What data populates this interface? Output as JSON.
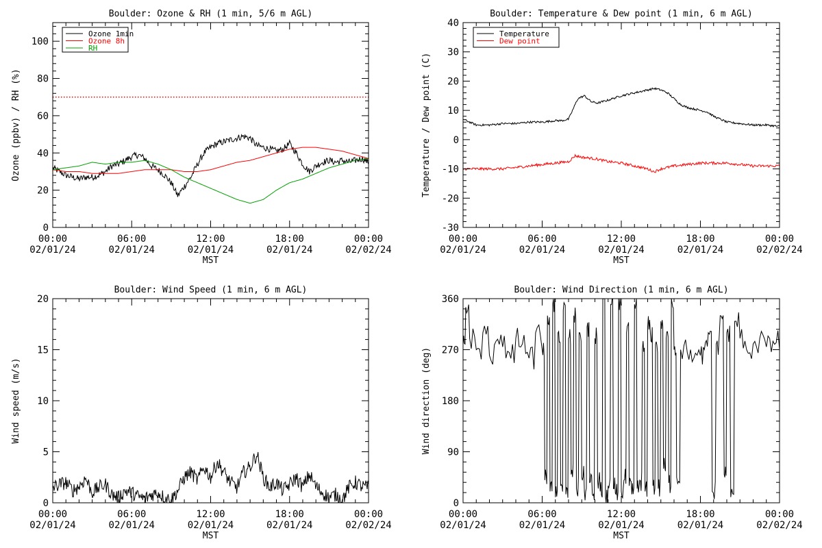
{
  "chart_data": [
    {
      "type": "line",
      "title": "Boulder: Ozone & RH (1 min, 5/6 m AGL)",
      "xlabel": "MST",
      "ylabel": "Ozone (ppbv) / RH (%)",
      "xlim": [
        0,
        24
      ],
      "ylim": [
        0,
        110
      ],
      "yticks": [
        0,
        20,
        40,
        60,
        80,
        100
      ],
      "xticks": [
        {
          "time": "00:00",
          "date": "02/01/24"
        },
        {
          "time": "06:00",
          "date": "02/01/24"
        },
        {
          "time": "12:00",
          "date": "02/01/24"
        },
        {
          "time": "18:00",
          "date": "02/01/24"
        },
        {
          "time": "00:00",
          "date": "02/02/24"
        }
      ],
      "legend_position": "top-left",
      "reference_line": {
        "y": 70,
        "color": "#ff0000",
        "style": "dotted"
      },
      "series": [
        {
          "name": "Ozone 1min",
          "color": "#000000",
          "x": [
            0,
            0.5,
            1,
            1.5,
            2,
            2.5,
            3,
            3.5,
            4,
            4.5,
            5,
            5.5,
            6,
            6.5,
            7,
            7.5,
            8,
            8.5,
            9,
            9.5,
            10,
            10.5,
            11,
            11.5,
            12,
            12.5,
            13,
            13.5,
            14,
            14.5,
            15,
            15.5,
            16,
            16.5,
            17,
            17.5,
            18,
            18.5,
            19,
            19.5,
            20,
            20.5,
            21,
            21.5,
            22,
            22.5,
            23,
            23.5,
            24
          ],
          "values": [
            32,
            30,
            28,
            27,
            26,
            27,
            27,
            28,
            30,
            33,
            34,
            36,
            38,
            39,
            37,
            33,
            31,
            28,
            24,
            17,
            22,
            27,
            34,
            40,
            43,
            45,
            46,
            47,
            48,
            49,
            48,
            44,
            43,
            42,
            41,
            42,
            45,
            40,
            34,
            30,
            33,
            35,
            36,
            35,
            36,
            35,
            36,
            37,
            35
          ]
        },
        {
          "name": "Ozone 8h",
          "color": "#ff0000",
          "x": [
            0,
            1,
            2,
            3,
            4,
            5,
            6,
            7,
            8,
            9,
            10,
            11,
            12,
            13,
            14,
            15,
            16,
            17,
            18,
            19,
            20,
            21,
            22,
            23,
            24
          ],
          "values": [
            31,
            30,
            30,
            29,
            29,
            29,
            30,
            31,
            31,
            31,
            30,
            30,
            31,
            33,
            35,
            36,
            38,
            40,
            42,
            43,
            43,
            42,
            41,
            39,
            37
          ]
        },
        {
          "name": "RH",
          "color": "#00a000",
          "x": [
            0,
            1,
            2,
            3,
            4,
            5,
            6,
            7,
            8,
            9,
            10,
            11,
            12,
            13,
            14,
            15,
            16,
            17,
            18,
            19,
            20,
            21,
            22,
            23,
            24
          ],
          "values": [
            31,
            32,
            33,
            35,
            34,
            35,
            35,
            36,
            34,
            31,
            27,
            24,
            21,
            18,
            15,
            13,
            15,
            20,
            24,
            26,
            29,
            32,
            34,
            36,
            37
          ]
        }
      ]
    },
    {
      "type": "line",
      "title": "Boulder: Temperature & Dew point (1 min, 6 m AGL)",
      "xlabel": "MST",
      "ylabel": "Temperature / Dew point (C)",
      "xlim": [
        0,
        24
      ],
      "ylim": [
        -30,
        40
      ],
      "yticks": [
        -30,
        -20,
        -10,
        0,
        10,
        20,
        30,
        40
      ],
      "xticks": [
        {
          "time": "00:00",
          "date": "02/01/24"
        },
        {
          "time": "06:00",
          "date": "02/01/24"
        },
        {
          "time": "12:00",
          "date": "02/01/24"
        },
        {
          "time": "18:00",
          "date": "02/01/24"
        },
        {
          "time": "00:00",
          "date": "02/02/24"
        }
      ],
      "legend_position": "top-left",
      "series": [
        {
          "name": "Temperature",
          "color": "#000000",
          "x": [
            0,
            0.5,
            1,
            1.5,
            2,
            3,
            4,
            5,
            6,
            7,
            7.5,
            8,
            8.3,
            8.7,
            9.2,
            9.7,
            10.2,
            11,
            12,
            13,
            14,
            14.5,
            15,
            15.5,
            16,
            16.5,
            17,
            18,
            18.5,
            19,
            20,
            21,
            22,
            23,
            24
          ],
          "values": [
            7,
            6,
            5,
            5,
            5,
            5.5,
            5.5,
            6,
            6,
            6.5,
            6.5,
            7,
            10,
            14,
            15,
            13,
            12.5,
            13.5,
            15,
            16,
            17,
            17.5,
            17,
            16,
            14,
            12,
            11,
            10,
            9.5,
            8,
            6,
            5.5,
            5,
            5,
            4.5
          ]
        },
        {
          "name": "Dew point",
          "color": "#ff0000",
          "x": [
            0,
            1,
            2,
            3,
            4,
            5,
            6,
            7,
            8,
            8.5,
            9,
            10,
            11,
            12,
            13,
            14,
            14.5,
            15,
            16,
            17,
            18,
            19,
            20,
            21,
            22,
            23,
            24
          ],
          "values": [
            -10,
            -10,
            -10,
            -10,
            -9.5,
            -9,
            -8.5,
            -8,
            -7.5,
            -5.5,
            -6,
            -6.5,
            -7.5,
            -8,
            -9,
            -10,
            -11,
            -10,
            -9,
            -8.5,
            -8,
            -8,
            -8,
            -8.5,
            -9,
            -9,
            -9
          ]
        }
      ]
    },
    {
      "type": "line",
      "title": "Boulder: Wind Speed (1 min, 6 m AGL)",
      "xlabel": "MST",
      "ylabel": "Wind speed (m/s)",
      "xlim": [
        0,
        24
      ],
      "ylim": [
        0,
        20
      ],
      "yticks": [
        0,
        5,
        10,
        15,
        20
      ],
      "xticks": [
        {
          "time": "00:00",
          "date": "02/01/24"
        },
        {
          "time": "06:00",
          "date": "02/01/24"
        },
        {
          "time": "12:00",
          "date": "02/01/24"
        },
        {
          "time": "18:00",
          "date": "02/01/24"
        },
        {
          "time": "00:00",
          "date": "02/02/24"
        }
      ],
      "series": [
        {
          "color": "#000000",
          "x": [
            0,
            0.5,
            1,
            1.5,
            2,
            2.5,
            3,
            3.5,
            4,
            4.5,
            5,
            5.5,
            6,
            6.5,
            7,
            7.5,
            8,
            8.5,
            9,
            9.5,
            10,
            10.5,
            11,
            11.5,
            12,
            12.5,
            13,
            13.5,
            14,
            14.5,
            15,
            15.5,
            16,
            16.5,
            17,
            17.5,
            18,
            18.5,
            19,
            19.5,
            20,
            20.5,
            21,
            21.5,
            22,
            22.5,
            23,
            23.5,
            24
          ],
          "values": [
            1.5,
            1.8,
            2.0,
            1.2,
            1.6,
            2.4,
            1.0,
            1.5,
            1.8,
            0.8,
            0.5,
            1.2,
            1.0,
            0.6,
            0.4,
            0.8,
            1.0,
            0.5,
            0.3,
            1.2,
            2.5,
            3.0,
            2.2,
            3.5,
            2.5,
            4.0,
            3.0,
            2.0,
            1.5,
            3.0,
            3.5,
            4.8,
            2.5,
            1.5,
            2.0,
            1.2,
            1.8,
            2.5,
            1.5,
            2.8,
            1.6,
            1.0,
            0.5,
            0.8,
            0.3,
            1.5,
            2.0,
            1.6,
            1.5
          ]
        }
      ]
    },
    {
      "type": "line",
      "title": "Boulder: Wind Direction (1 min, 6 m AGL)",
      "xlabel": "MST",
      "ylabel": "Wind direction (deg)",
      "xlim": [
        0,
        24
      ],
      "ylim": [
        0,
        360
      ],
      "yticks": [
        0,
        90,
        180,
        270,
        360
      ],
      "xticks": [
        {
          "time": "00:00",
          "date": "02/01/24"
        },
        {
          "time": "06:00",
          "date": "02/01/24"
        },
        {
          "time": "12:00",
          "date": "02/01/24"
        },
        {
          "time": "18:00",
          "date": "02/01/24"
        },
        {
          "time": "00:00",
          "date": "02/02/24"
        }
      ],
      "series": [
        {
          "color": "#000000",
          "x": [
            0,
            0.2,
            0.5,
            1,
            1.5,
            2,
            2.5,
            3,
            3.5,
            4,
            4.5,
            5,
            5.5,
            6,
            6.2,
            6.4,
            6.6,
            6.8,
            7,
            7.2,
            7.4,
            7.6,
            7.8,
            8,
            8.2,
            8.4,
            8.6,
            8.8,
            9,
            9.2,
            9.4,
            9.6,
            9.8,
            10,
            10.2,
            10.4,
            10.6,
            10.8,
            11,
            11.2,
            11.4,
            11.6,
            11.8,
            12,
            12.2,
            12.4,
            12.6,
            12.8,
            13,
            13.2,
            13.4,
            13.6,
            13.8,
            14,
            14.2,
            14.4,
            14.6,
            14.8,
            15,
            15.2,
            15.4,
            15.6,
            15.8,
            16,
            16.2,
            16.5,
            17,
            17.5,
            18,
            18.3,
            18.6,
            18.9,
            19.2,
            19.5,
            19.8,
            20,
            20.3,
            20.6,
            21,
            21.5,
            22,
            22.5,
            23,
            23.5,
            24
          ],
          "values": [
            280,
            345,
            290,
            270,
            300,
            260,
            285,
            275,
            265,
            290,
            280,
            255,
            300,
            270,
            40,
            330,
            20,
            350,
            10,
            300,
            30,
            340,
            15,
            290,
            50,
            330,
            25,
            300,
            45,
            20,
            310,
            35,
            15,
            290,
            40,
            20,
            360,
            10,
            30,
            350,
            25,
            15,
            360,
            20,
            40,
            300,
            30,
            15,
            350,
            25,
            40,
            270,
            20,
            310,
            300,
            30,
            280,
            25,
            320,
            60,
            290,
            35,
            360,
            270,
            45,
            270,
            265,
            255,
            260,
            270,
            300,
            20,
            280,
            330,
            50,
            300,
            10,
            320,
            290,
            270,
            280,
            290,
            275,
            285,
            270
          ]
        }
      ]
    }
  ]
}
